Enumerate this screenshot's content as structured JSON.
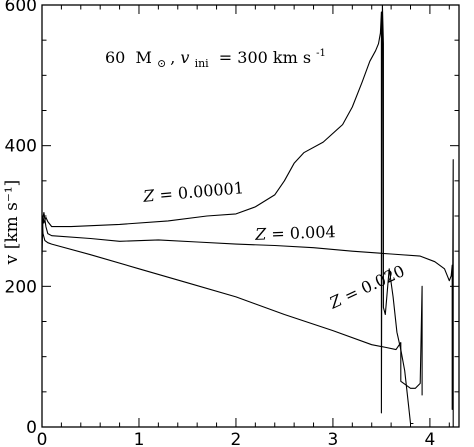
{
  "chart_data": {
    "type": "line",
    "title": "",
    "xlabel": "",
    "ylabel": "v [km s⁻¹]",
    "xlim": [
      0,
      4.3
    ],
    "ylim": [
      0,
      600
    ],
    "x_ticks": [
      "0",
      "1",
      "2",
      "3",
      "4"
    ],
    "y_ticks": [
      "0",
      "200",
      "400",
      "600"
    ],
    "grid": false,
    "annotation": "60 M⊙, v_ini = 300 km s⁻¹",
    "annotation_parts": {
      "mass": "60",
      "mass_unit": "M",
      "sun_symbol": "⊙",
      "v_symbol": "v",
      "v_subscript": "ini",
      "value": "= 300 km s",
      "exponent": "-1"
    },
    "series": [
      {
        "name": "Z = 0.00001",
        "points": [
          [
            0.0,
            245
          ],
          [
            0.01,
            300
          ],
          [
            0.02,
            290
          ],
          [
            0.04,
            298
          ],
          [
            0.06,
            292
          ],
          [
            0.1,
            285
          ],
          [
            0.3,
            285
          ],
          [
            0.8,
            288
          ],
          [
            1.3,
            293
          ],
          [
            1.7,
            300
          ],
          [
            2.0,
            303
          ],
          [
            2.2,
            313
          ],
          [
            2.4,
            330
          ],
          [
            2.5,
            350
          ],
          [
            2.6,
            375
          ],
          [
            2.7,
            390
          ],
          [
            2.9,
            405
          ],
          [
            3.1,
            430
          ],
          [
            3.2,
            455
          ],
          [
            3.3,
            490
          ],
          [
            3.38,
            520
          ],
          [
            3.44,
            535
          ],
          [
            3.47,
            545
          ],
          [
            3.49,
            560
          ],
          [
            3.5,
            590
          ],
          [
            3.5,
            20
          ],
          [
            3.51,
            600
          ],
          [
            3.52,
            545
          ],
          [
            3.52,
            170
          ],
          [
            3.54,
            160
          ],
          [
            3.58,
            225
          ],
          [
            3.62,
            185
          ],
          [
            3.66,
            135
          ],
          [
            3.7,
            110
          ],
          [
            3.74,
            80
          ],
          [
            3.78,
            30
          ],
          [
            3.8,
            5
          ],
          [
            3.83,
            5
          ]
        ]
      },
      {
        "name": "Z = 0.004",
        "points": [
          [
            0.0,
            290
          ],
          [
            0.02,
            305
          ],
          [
            0.04,
            285
          ],
          [
            0.06,
            275
          ],
          [
            0.1,
            272
          ],
          [
            0.5,
            268
          ],
          [
            0.8,
            264
          ],
          [
            1.2,
            266
          ],
          [
            1.6,
            263
          ],
          [
            2.0,
            260
          ],
          [
            2.4,
            258
          ],
          [
            2.8,
            255
          ],
          [
            3.2,
            250
          ],
          [
            3.6,
            246
          ],
          [
            3.9,
            243
          ],
          [
            4.05,
            235
          ],
          [
            4.15,
            225
          ],
          [
            4.2,
            208
          ],
          [
            4.22,
            215
          ],
          [
            4.23,
            230
          ],
          [
            4.23,
            25
          ],
          [
            4.24,
            380
          ],
          [
            4.24,
            0
          ]
        ]
      },
      {
        "name": "Z = 0.020",
        "points": [
          [
            0.0,
            300
          ],
          [
            0.01,
            275
          ],
          [
            0.03,
            265
          ],
          [
            0.06,
            262
          ],
          [
            0.1,
            260
          ],
          [
            0.5,
            245
          ],
          [
            1.0,
            225
          ],
          [
            1.5,
            205
          ],
          [
            2.0,
            185
          ],
          [
            2.5,
            160
          ],
          [
            3.0,
            137
          ],
          [
            3.4,
            117
          ],
          [
            3.55,
            113
          ],
          [
            3.65,
            110
          ],
          [
            3.7,
            120
          ],
          [
            3.7,
            65
          ],
          [
            3.75,
            60
          ],
          [
            3.8,
            55
          ],
          [
            3.85,
            55
          ],
          [
            3.9,
            62
          ],
          [
            3.92,
            200
          ],
          [
            3.92,
            45
          ]
        ]
      }
    ],
    "series_labels": [
      {
        "series": 0,
        "text": "Z = 0.00001",
        "x": 1.05,
        "y": 320,
        "rotate": -5
      },
      {
        "series": 1,
        "text": "Z = 0.004",
        "x": 2.2,
        "y": 266,
        "rotate": -2
      },
      {
        "series": 2,
        "text": "Z = 0.020",
        "x": 3.0,
        "y": 168,
        "rotate": -25
      }
    ]
  }
}
